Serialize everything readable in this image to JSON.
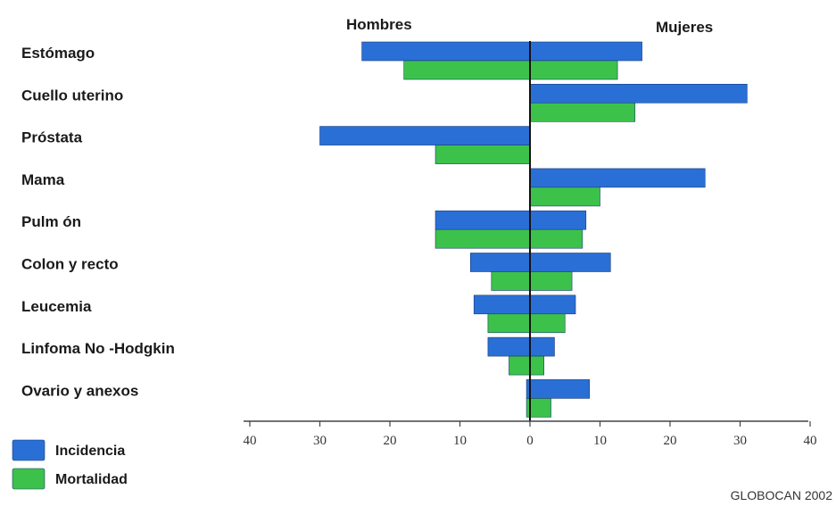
{
  "chart_data": {
    "type": "bar",
    "orientation": "horizontal-diverging",
    "sides": {
      "left": "Hombres",
      "right": "Mujeres"
    },
    "categories": [
      "Estómago",
      "Cuello uterino",
      "Próstata",
      "Mama",
      "Pulm ón",
      "Colon y recto",
      "Leucemia",
      "Linfoma No -Hodgkin",
      "Ovario y anexos"
    ],
    "series": [
      {
        "name": "Incidencia",
        "color": "#2a6fd6",
        "hombres": [
          24,
          0,
          30,
          0,
          13.5,
          8.5,
          8,
          6,
          0.5
        ],
        "mujeres": [
          16,
          31,
          0,
          25,
          8,
          11.5,
          6.5,
          3.5,
          8.5
        ]
      },
      {
        "name": "Mortalidad",
        "color": "#3cc24a",
        "hombres": [
          18,
          0,
          13.5,
          0,
          13.5,
          5.5,
          6,
          3,
          0.5
        ],
        "mujeres": [
          12.5,
          15,
          0,
          10,
          7.5,
          6,
          5,
          2,
          3
        ]
      }
    ],
    "x_ticks": [
      "40",
      "30",
      "20",
      "10",
      "0",
      "10",
      "20",
      "30",
      "40"
    ],
    "xlim": [
      -40,
      40
    ],
    "grid": false,
    "legend_position": "bottom-left",
    "source": "GLOBOCAN 2002"
  }
}
